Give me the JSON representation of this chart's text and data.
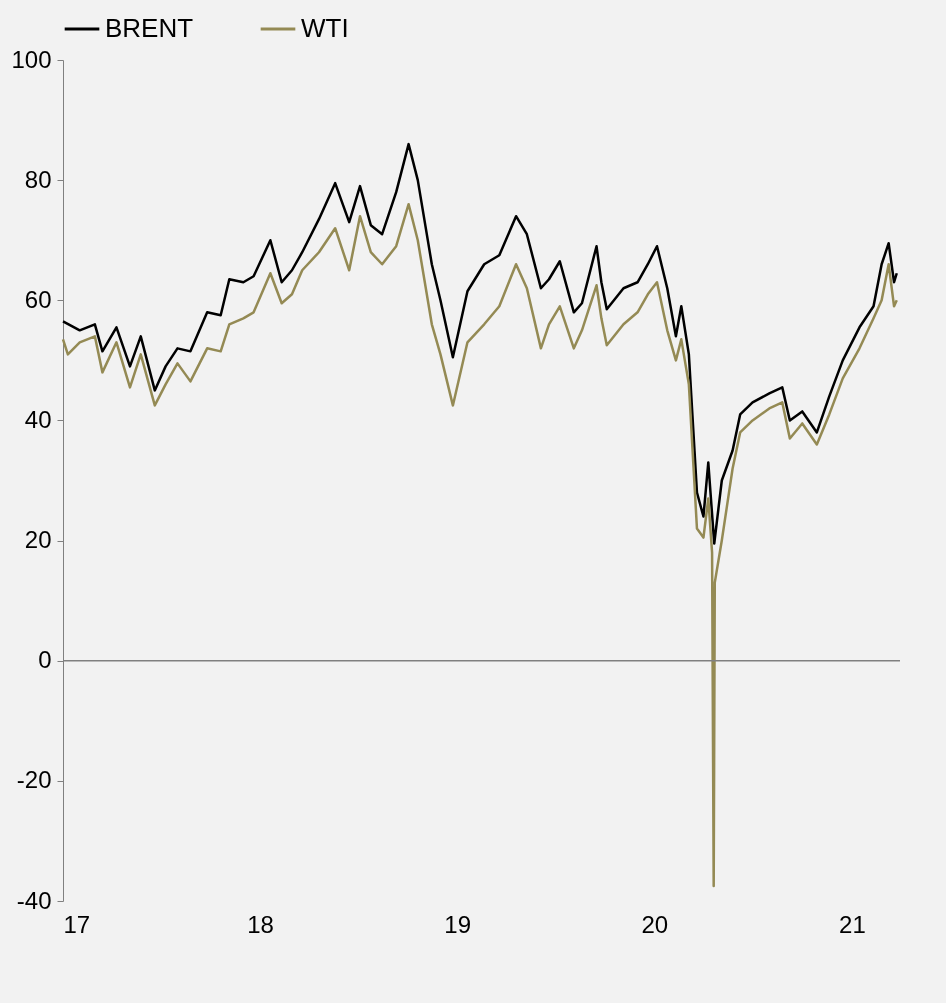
{
  "chart_data": {
    "type": "line",
    "legend": "top",
    "xlim": [
      "2017-01-01",
      "2021-03-31"
    ],
    "xticks": [
      {
        "value": "2017-01-01",
        "label": "17"
      },
      {
        "value": "2018-01-01",
        "label": "18"
      },
      {
        "value": "2019-01-01",
        "label": "19"
      },
      {
        "value": "2020-01-01",
        "label": "20"
      },
      {
        "value": "2021-01-01",
        "label": "21"
      }
    ],
    "ylim": [
      -40,
      100
    ],
    "yticks": [
      -40,
      -20,
      0,
      20,
      40,
      60,
      80,
      100
    ],
    "ref_lines": [
      {
        "axis": "y",
        "value": 0,
        "color": "#808080"
      }
    ],
    "series": [
      {
        "name": "BRENT",
        "color": "#000000",
        "x": [
          "2017-01-01",
          "2017-02-01",
          "2017-03-01",
          "2017-03-15",
          "2017-04-10",
          "2017-05-05",
          "2017-05-25",
          "2017-06-20",
          "2017-07-10",
          "2017-08-01",
          "2017-08-25",
          "2017-09-25",
          "2017-10-20",
          "2017-11-05",
          "2017-12-01",
          "2017-12-20",
          "2018-01-20",
          "2018-02-10",
          "2018-03-01",
          "2018-03-20",
          "2018-04-20",
          "2018-05-20",
          "2018-06-15",
          "2018-07-05",
          "2018-07-25",
          "2018-08-15",
          "2018-09-10",
          "2018-10-03",
          "2018-10-20",
          "2018-11-15",
          "2018-12-01",
          "2018-12-24",
          "2019-01-20",
          "2019-02-20",
          "2019-03-20",
          "2019-04-20",
          "2019-05-10",
          "2019-06-05",
          "2019-06-20",
          "2019-07-10",
          "2019-08-05",
          "2019-08-20",
          "2019-09-16",
          "2019-09-25",
          "2019-10-05",
          "2019-11-05",
          "2019-12-01",
          "2019-12-20",
          "2020-01-06",
          "2020-01-25",
          "2020-02-10",
          "2020-02-20",
          "2020-03-05",
          "2020-03-20",
          "2020-04-01",
          "2020-04-10",
          "2020-04-21",
          "2020-05-05",
          "2020-05-25",
          "2020-06-08",
          "2020-07-01",
          "2020-08-01",
          "2020-08-25",
          "2020-09-08",
          "2020-10-01",
          "2020-10-28",
          "2020-11-20",
          "2020-12-15",
          "2021-01-15",
          "2021-02-10",
          "2021-02-25",
          "2021-03-10",
          "2021-03-20",
          "2021-03-25"
        ],
        "values": [
          56.5,
          55,
          56,
          51.5,
          55.5,
          49,
          54,
          45,
          49,
          52,
          51.5,
          58,
          57.5,
          63.5,
          63,
          64,
          70,
          63,
          65,
          68,
          73.5,
          79.5,
          73,
          79,
          72.5,
          71,
          78,
          86,
          80,
          66,
          60,
          50.5,
          61.5,
          66,
          67.5,
          74,
          71,
          62,
          63.5,
          66.5,
          58,
          59.5,
          69,
          63,
          58.5,
          62,
          63,
          66,
          69,
          62,
          54,
          59,
          51,
          28,
          24,
          33,
          19.5,
          30,
          35,
          41,
          43,
          44.5,
          45.5,
          40,
          41.5,
          38,
          44,
          50,
          55.5,
          59,
          66,
          69.5,
          63,
          64.5
        ]
      },
      {
        "name": "WTI",
        "color": "#948a54",
        "x": [
          "2017-01-01",
          "2017-01-10",
          "2017-02-01",
          "2017-03-01",
          "2017-03-15",
          "2017-04-10",
          "2017-05-05",
          "2017-05-25",
          "2017-06-20",
          "2017-07-10",
          "2017-08-01",
          "2017-08-25",
          "2017-09-25",
          "2017-10-20",
          "2017-11-05",
          "2017-12-01",
          "2017-12-20",
          "2018-01-20",
          "2018-02-10",
          "2018-03-01",
          "2018-03-20",
          "2018-04-20",
          "2018-05-20",
          "2018-06-15",
          "2018-07-05",
          "2018-07-25",
          "2018-08-15",
          "2018-09-10",
          "2018-10-03",
          "2018-10-20",
          "2018-11-15",
          "2018-12-01",
          "2018-12-24",
          "2019-01-20",
          "2019-02-20",
          "2019-03-20",
          "2019-04-20",
          "2019-05-10",
          "2019-06-05",
          "2019-06-20",
          "2019-07-10",
          "2019-08-05",
          "2019-08-20",
          "2019-09-16",
          "2019-09-25",
          "2019-10-05",
          "2019-11-05",
          "2019-12-01",
          "2019-12-20",
          "2020-01-06",
          "2020-01-25",
          "2020-02-10",
          "2020-02-20",
          "2020-03-05",
          "2020-03-20",
          "2020-04-01",
          "2020-04-10",
          "2020-04-17",
          "2020-04-20",
          "2020-04-22",
          "2020-05-05",
          "2020-05-25",
          "2020-06-08",
          "2020-07-01",
          "2020-08-01",
          "2020-08-25",
          "2020-09-08",
          "2020-10-01",
          "2020-10-28",
          "2020-11-20",
          "2020-12-15",
          "2021-01-15",
          "2021-02-10",
          "2021-02-25",
          "2021-03-10",
          "2021-03-20",
          "2021-03-25"
        ],
        "values": [
          53.5,
          51,
          53,
          54,
          48,
          53,
          45.5,
          51,
          42.5,
          46,
          49.5,
          46.5,
          52,
          51.5,
          56,
          57,
          58,
          64.5,
          59.5,
          61,
          65,
          68,
          72,
          65,
          74,
          68,
          66,
          69,
          76,
          70,
          56,
          51,
          42.5,
          53,
          56,
          59,
          66,
          62,
          52,
          56,
          59,
          52,
          55,
          62.5,
          57,
          52.5,
          56,
          58,
          61,
          63,
          55,
          50,
          53.5,
          46,
          22,
          20.5,
          27,
          18,
          -37.5,
          13,
          20,
          32,
          38,
          40,
          42,
          43,
          37,
          39.5,
          36,
          41,
          47,
          52,
          57,
          60,
          66,
          59,
          60
        ]
      }
    ]
  }
}
